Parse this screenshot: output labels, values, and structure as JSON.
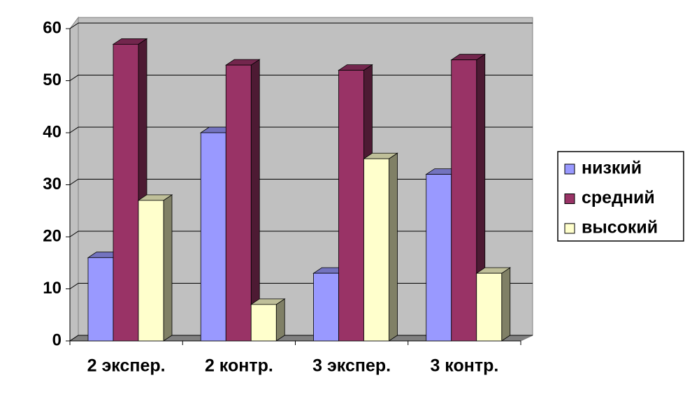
{
  "chart_data": {
    "type": "bar3d",
    "categories": [
      "2 экспер.",
      "2 контр.",
      "3 экспер.",
      "3 контр."
    ],
    "series": [
      {
        "name": "низкий",
        "color": "#9999ff",
        "values": [
          16,
          40,
          13,
          32
        ]
      },
      {
        "name": "средний",
        "color": "#993366",
        "values": [
          57,
          53,
          52,
          54
        ]
      },
      {
        "name": "высокий",
        "color": "#ffffcc",
        "values": [
          27,
          7,
          35,
          13
        ]
      }
    ],
    "ylim": [
      0,
      60
    ],
    "yticks": [
      0,
      10,
      20,
      30,
      40,
      50,
      60
    ],
    "grid": true,
    "legend": "right"
  }
}
